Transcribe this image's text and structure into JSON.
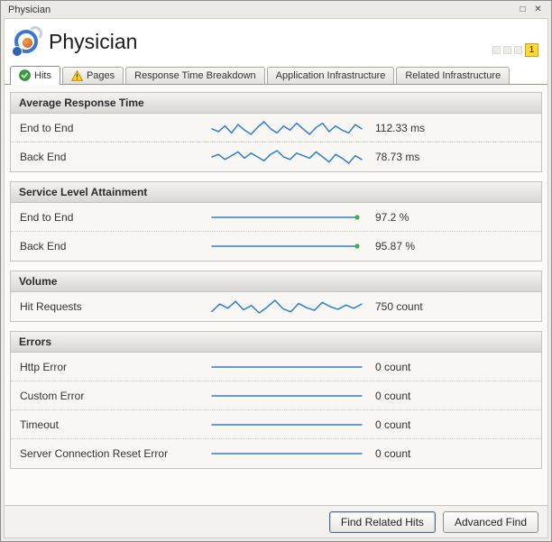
{
  "window": {
    "title": "Physician"
  },
  "header": {
    "title": "Physician",
    "badge": "1"
  },
  "tabs": [
    {
      "label": "Hits",
      "icon": "check",
      "active": true
    },
    {
      "label": "Pages",
      "icon": "warning",
      "active": false
    },
    {
      "label": "Response Time Breakdown",
      "active": false
    },
    {
      "label": "Application Infrastructure",
      "active": false
    },
    {
      "label": "Related Infrastructure",
      "active": false
    }
  ],
  "sections": [
    {
      "title": "Average Response Time",
      "rows": [
        {
          "label": "End to End",
          "value": "112.33 ms",
          "spark": {
            "values": [
              112,
              110,
              114,
              109,
              115,
              111,
              108,
              113,
              117,
              112,
              109,
              114,
              111,
              116,
              112,
              108,
              113,
              116,
              110,
              114,
              111,
              109,
              115,
              112
            ],
            "dot": false
          }
        },
        {
          "label": "Back End",
          "value": "78.73 ms",
          "spark": {
            "values": [
              78,
              80,
              76,
              79,
              82,
              77,
              81,
              78,
              75,
              80,
              83,
              78,
              76,
              81,
              79,
              77,
              82,
              78,
              74,
              80,
              77,
              73,
              79,
              76
            ],
            "dot": false
          }
        }
      ]
    },
    {
      "title": "Service Level Attainment",
      "rows": [
        {
          "label": "End to End",
          "value": "97.2 %",
          "spark": {
            "values": [
              97.2,
              97.2,
              97.2,
              97.2,
              97.2,
              97.2,
              97.2,
              97.2,
              97.2,
              97.2,
              97.2,
              97.2
            ],
            "dot": true
          }
        },
        {
          "label": "Back End",
          "value": "95.87 %",
          "spark": {
            "values": [
              95.87,
              95.87,
              95.87,
              95.87,
              95.87,
              95.87,
              95.87,
              95.87,
              95.87,
              95.87,
              95.87,
              95.87
            ],
            "dot": true
          }
        }
      ]
    },
    {
      "title": "Volume",
      "rows": [
        {
          "label": "Hit Requests",
          "value": "750 count",
          "spark": {
            "values": [
              742,
              756,
              748,
              761,
              745,
              753,
              739,
              750,
              763,
              747,
              741,
              757,
              749,
              744,
              759,
              751,
              746,
              754,
              748,
              756
            ],
            "dot": false
          }
        }
      ]
    },
    {
      "title": "Errors",
      "rows": [
        {
          "label": "Http Error",
          "value": "0 count",
          "spark": {
            "values": [
              0,
              0,
              0,
              0,
              0,
              0,
              0,
              0
            ],
            "dot": false
          }
        },
        {
          "label": "Custom Error",
          "value": "0 count",
          "spark": {
            "values": [
              0,
              0,
              0,
              0,
              0,
              0,
              0,
              0
            ],
            "dot": false
          }
        },
        {
          "label": "Timeout",
          "value": "0 count",
          "spark": {
            "values": [
              0,
              0,
              0,
              0,
              0,
              0,
              0,
              0
            ],
            "dot": false
          }
        },
        {
          "label": "Server Connection Reset Error",
          "value": "0 count",
          "spark": {
            "values": [
              0,
              0,
              0,
              0,
              0,
              0,
              0,
              0
            ],
            "dot": false
          }
        }
      ]
    }
  ],
  "footer": {
    "buttons": [
      {
        "label": "Find Related Hits"
      },
      {
        "label": "Advanced Find"
      }
    ]
  },
  "colors": {
    "sparkline": "#2d7ece",
    "sla_dot": "#3fae49",
    "badge_bg": "#ffd938"
  }
}
